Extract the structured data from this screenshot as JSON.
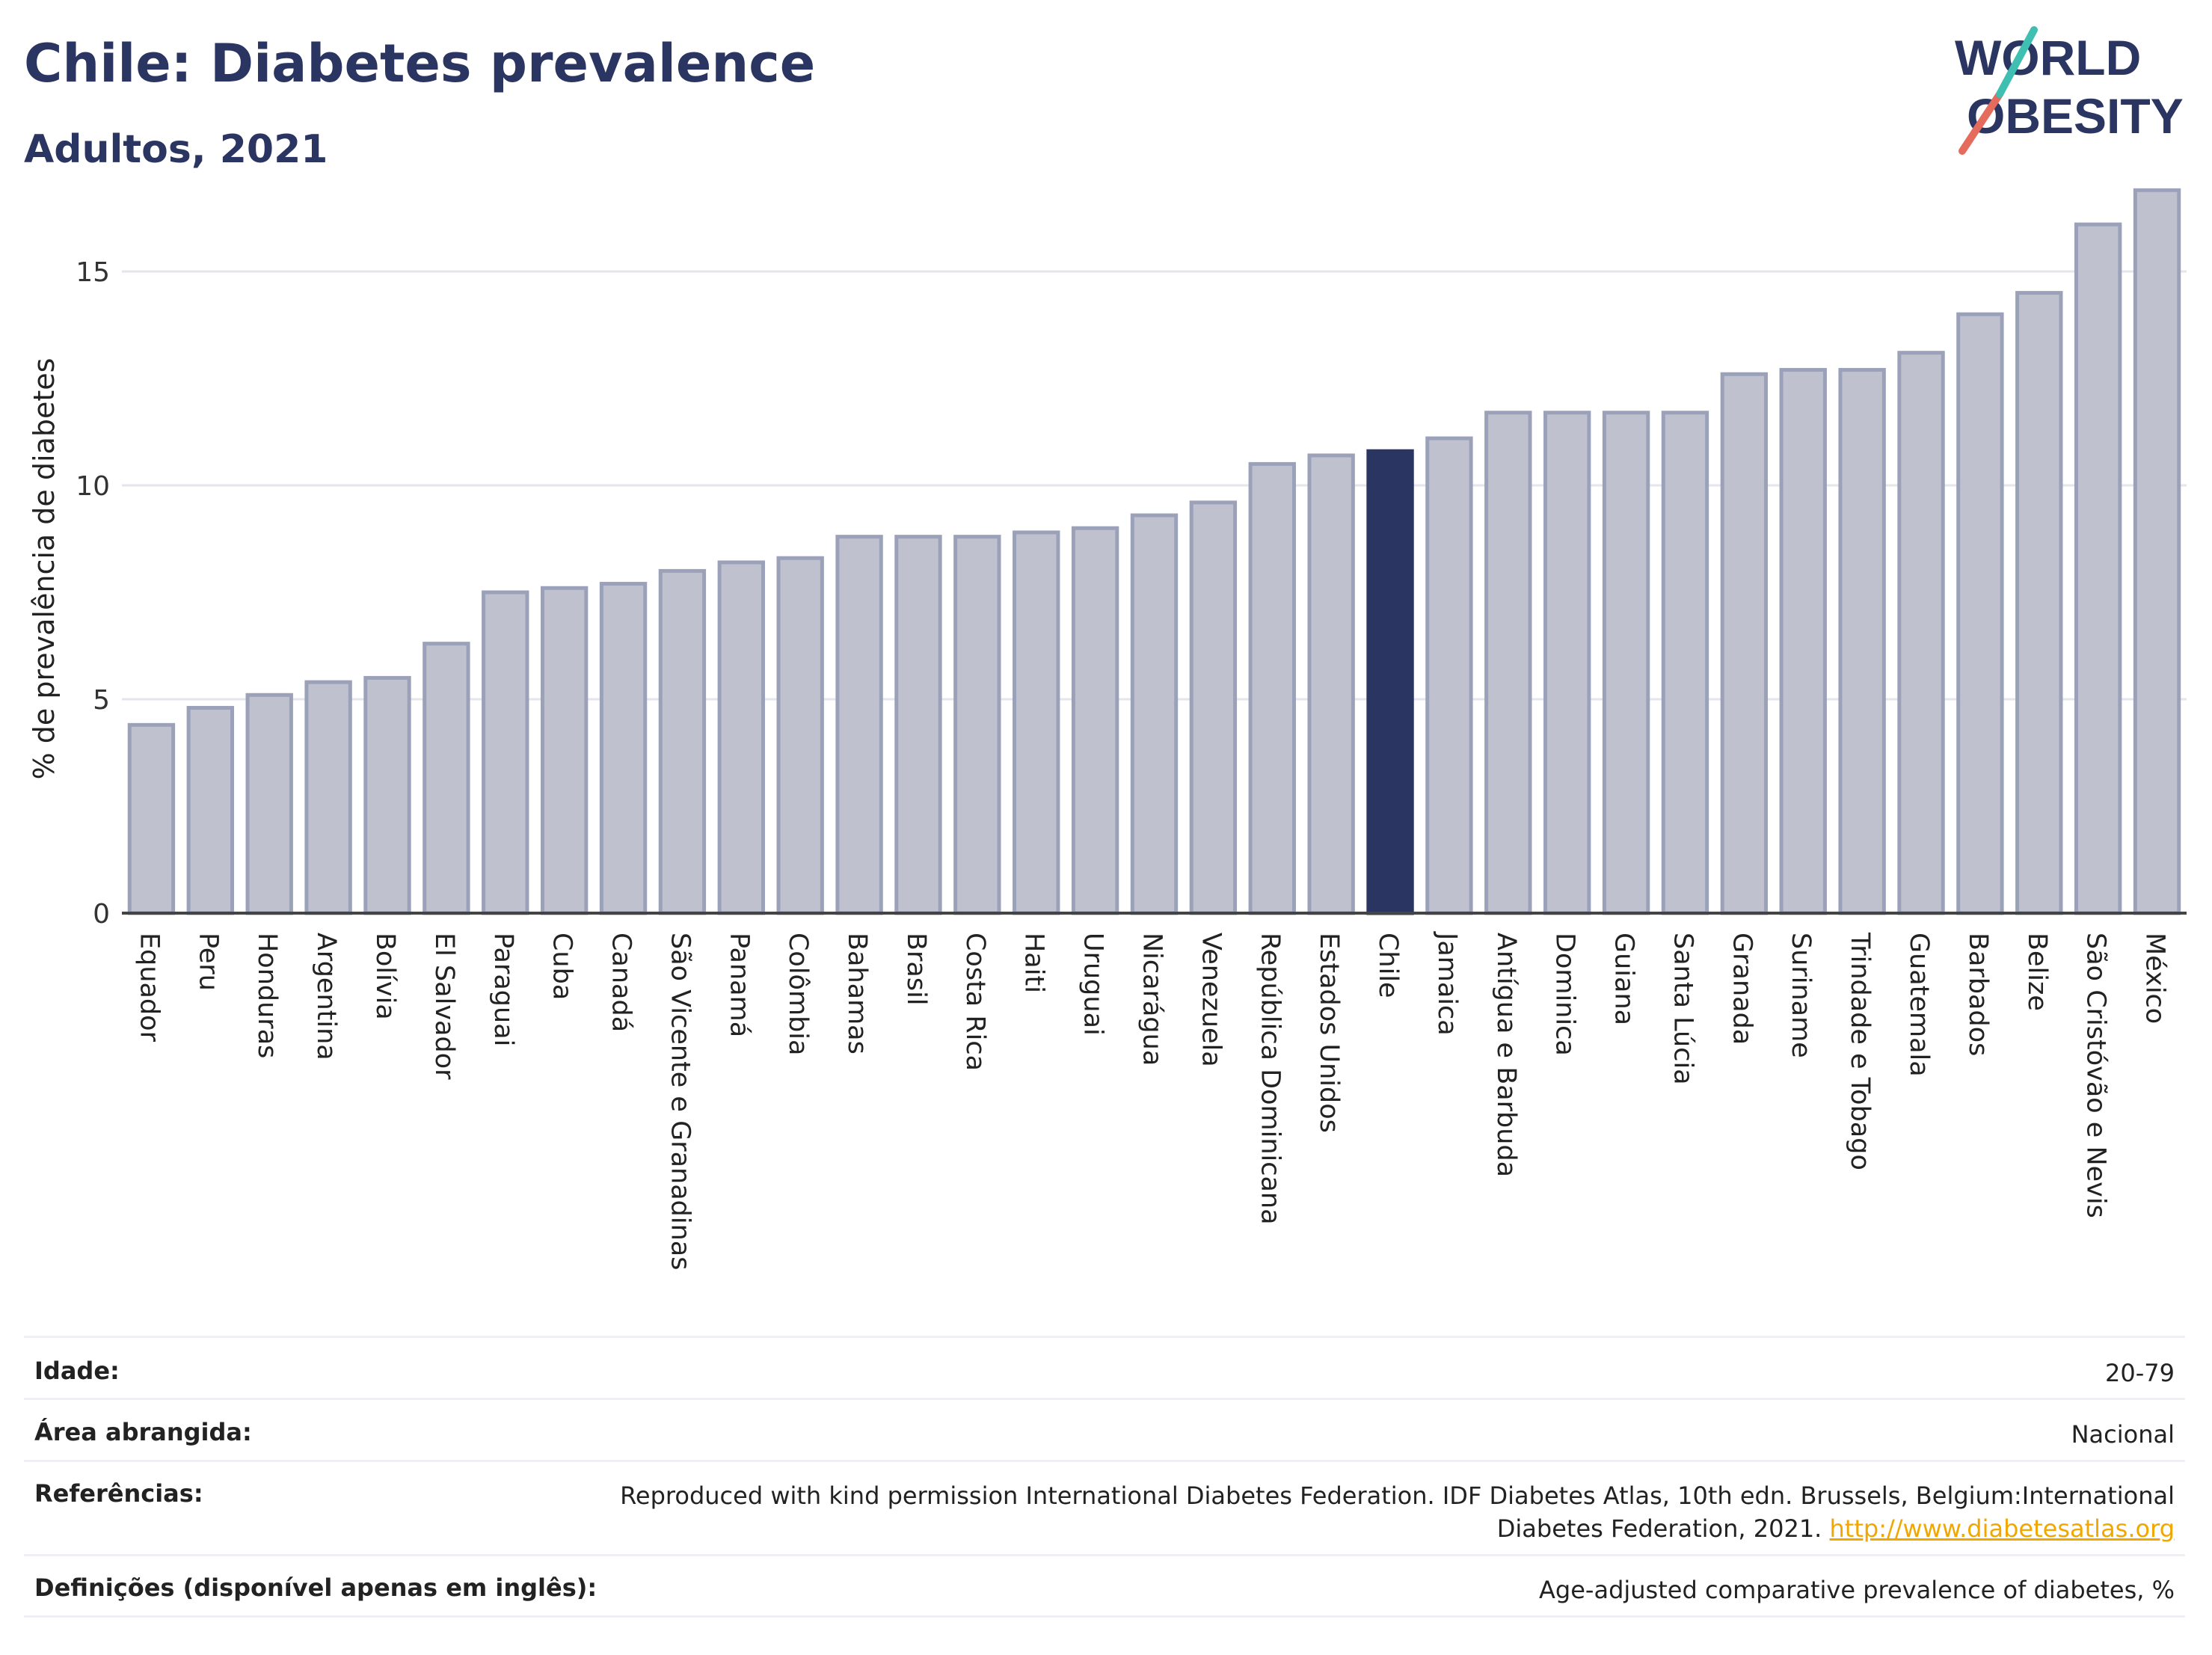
{
  "header": {
    "title": "Chile: Diabetes prevalence",
    "subtitle": "Adultos, 2021"
  },
  "logo": {
    "line1": "WORLD",
    "line2": "OBESITY"
  },
  "colors": {
    "bar": "#bfc2ce",
    "bar_stroke": "#9ba1b8",
    "highlight": "#2b3561",
    "grid": "#e4e6ed",
    "axis": "#444444"
  },
  "chart_data": {
    "type": "bar",
    "ylabel": "% de prevalência de diabetes",
    "ylim": [
      0,
      17.5
    ],
    "yticks": [
      0,
      5,
      10,
      15
    ],
    "grid": true,
    "highlight": "Chile",
    "categories": [
      "Equador",
      "Peru",
      "Honduras",
      "Argentina",
      "Bolívia",
      "El Salvador",
      "Paraguai",
      "Cuba",
      "Canadá",
      "São Vicente e Granadinas",
      "Panamá",
      "Colômbia",
      "Bahamas",
      "Brasil",
      "Costa Rica",
      "Haiti",
      "Uruguai",
      "Nicarágua",
      "Venezuela",
      "República Dominicana",
      "Estados Unidos",
      "Chile",
      "Jamaica",
      "Antígua e Barbuda",
      "Dominica",
      "Guiana",
      "Santa Lúcia",
      "Granada",
      "Suriname",
      "Trindade e Tobago",
      "Guatemala",
      "Barbados",
      "Belize",
      "São Cristóvão e Nevis",
      "México"
    ],
    "values": [
      4.4,
      4.8,
      5.1,
      5.4,
      5.5,
      6.3,
      7.5,
      7.6,
      7.7,
      8.0,
      8.2,
      8.3,
      8.8,
      8.8,
      8.8,
      8.9,
      9.0,
      9.3,
      9.6,
      10.5,
      10.7,
      10.8,
      11.1,
      11.7,
      11.7,
      11.7,
      11.7,
      12.6,
      12.7,
      12.7,
      13.1,
      14.0,
      14.5,
      16.1,
      16.9
    ]
  },
  "footer": {
    "rows": [
      {
        "key": "Idade:",
        "value": "20-79"
      },
      {
        "key": "Área abrangida:",
        "value": "Nacional"
      },
      {
        "key": "Referências:",
        "value_line1": "Reproduced with kind permission International Diabetes Federation.  IDF Diabetes Atlas, 10th edn. Brussels, Belgium:International",
        "value_line2": "Diabetes Federation, 2021.",
        "link": "http://www.diabetesatlas.org"
      },
      {
        "key": "Definições (disponível apenas em inglês):",
        "value": "Age-adjusted comparative prevalence of diabetes, %"
      }
    ]
  }
}
